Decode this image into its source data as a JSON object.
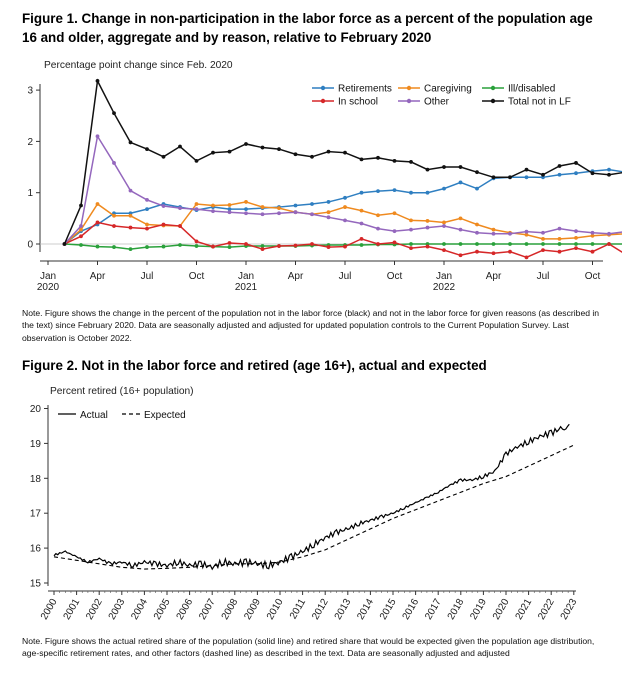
{
  "figure1": {
    "title": "Figure 1.  Change in non-participation in the labor force as a percent of the population age 16 and older, aggregate and by reason, relative to February 2020",
    "note": "Note. Figure shows the change in the percent of the population not in the labor force (black) and not in the labor force for given reasons (as described in the text) since February 2020.  Data are seasonally adjusted and adjusted for updated population controls to the Current Population Survey.  Last observation is October 2022."
  },
  "figure2": {
    "title": "Figure 2.  Not in the labor force and retired (age 16+), actual and expected",
    "note": "Note. Figure shows the actual retired share of the population (solid line) and retired share that would be expected given the population age distribution, age-specific retirement rates, and other factors (dashed line) as described in the text.  Data are seasonally adjusted and adjusted"
  },
  "chart_data": [
    {
      "type": "line",
      "title": "Figure 1.  Change in non-participation in the labor force as a percent of the population age 16 and older, aggregate and by reason, relative to February 2020",
      "ylabel": "Percentage point change since Feb. 2020",
      "ylim": [
        -0.3,
        3.1
      ],
      "yticks": [
        0,
        1,
        2,
        3
      ],
      "x_start": "2020-02",
      "x_end": "2022-10",
      "xticks": [
        {
          "month": "2020-01",
          "label": "Jan",
          "sub": "2020"
        },
        {
          "month": "2020-04",
          "label": "Apr",
          "sub": ""
        },
        {
          "month": "2020-07",
          "label": "Jul",
          "sub": ""
        },
        {
          "month": "2020-10",
          "label": "Oct",
          "sub": ""
        },
        {
          "month": "2021-01",
          "label": "Jan",
          "sub": "2021"
        },
        {
          "month": "2021-04",
          "label": "Apr",
          "sub": ""
        },
        {
          "month": "2021-07",
          "label": "Jul",
          "sub": ""
        },
        {
          "month": "2021-10",
          "label": "Oct",
          "sub": ""
        },
        {
          "month": "2022-01",
          "label": "Jan",
          "sub": "2022"
        },
        {
          "month": "2022-04",
          "label": "Apr",
          "sub": ""
        },
        {
          "month": "2022-07",
          "label": "Jul",
          "sub": ""
        },
        {
          "month": "2022-10",
          "label": "Oct",
          "sub": ""
        }
      ],
      "grid": false,
      "legend": "top-right",
      "series": [
        {
          "name": "Retirements",
          "color": "#2f7fc1",
          "values": [
            0,
            0.25,
            0.38,
            0.6,
            0.6,
            0.68,
            0.78,
            0.72,
            0.66,
            0.72,
            0.68,
            0.68,
            0.7,
            0.72,
            0.75,
            0.78,
            0.82,
            0.9,
            1.0,
            1.03,
            1.05,
            1.0,
            1.0,
            1.08,
            1.2,
            1.08,
            1.28,
            1.3,
            1.3,
            1.3,
            1.35,
            1.38,
            1.42,
            1.45,
            1.4,
            1.42
          ]
        },
        {
          "name": "Caregiving",
          "color": "#ef8a1f",
          "values": [
            0,
            0.28,
            0.78,
            0.55,
            0.55,
            0.38,
            0.36,
            0.35,
            0.78,
            0.75,
            0.76,
            0.82,
            0.72,
            0.7,
            0.62,
            0.58,
            0.62,
            0.72,
            0.65,
            0.56,
            0.6,
            0.46,
            0.45,
            0.42,
            0.5,
            0.38,
            0.28,
            0.22,
            0.18,
            0.1,
            0.1,
            0.12,
            0.16,
            0.18,
            0.2,
            0.2
          ]
        },
        {
          "name": "Ill/disabled",
          "color": "#2aa13b",
          "values": [
            0,
            -0.02,
            -0.05,
            -0.06,
            -0.1,
            -0.06,
            -0.05,
            -0.02,
            -0.04,
            -0.05,
            -0.06,
            -0.04,
            -0.04,
            -0.04,
            -0.04,
            -0.03,
            -0.02,
            -0.02,
            -0.02,
            -0.01,
            -0.01,
            0,
            0,
            0,
            0,
            0,
            0,
            0,
            0,
            0,
            0,
            0,
            0,
            0,
            0,
            0
          ]
        },
        {
          "name": "In school",
          "color": "#d62728",
          "values": [
            0,
            0.15,
            0.42,
            0.35,
            0.32,
            0.3,
            0.38,
            0.35,
            0.05,
            -0.05,
            0.02,
            0,
            -0.1,
            -0.04,
            -0.03,
            0,
            -0.06,
            -0.05,
            0.1,
            0,
            0.03,
            -0.08,
            -0.05,
            -0.12,
            -0.22,
            -0.15,
            -0.18,
            -0.15,
            -0.26,
            -0.12,
            -0.15,
            -0.08,
            -0.15,
            0,
            -0.2,
            -0.12
          ]
        },
        {
          "name": "Other",
          "color": "#9467bd",
          "values": [
            0,
            0.35,
            2.1,
            1.58,
            1.04,
            0.86,
            0.74,
            0.7,
            0.68,
            0.64,
            0.62,
            0.6,
            0.58,
            0.6,
            0.62,
            0.58,
            0.52,
            0.46,
            0.4,
            0.3,
            0.25,
            0.28,
            0.32,
            0.35,
            0.28,
            0.22,
            0.2,
            0.2,
            0.24,
            0.22,
            0.3,
            0.25,
            0.22,
            0.2,
            0.24,
            0.22
          ]
        },
        {
          "name": "Total not in LF",
          "color": "#111111",
          "values": [
            0,
            0.75,
            3.18,
            2.55,
            1.98,
            1.85,
            1.7,
            1.9,
            1.62,
            1.78,
            1.8,
            1.95,
            1.88,
            1.85,
            1.75,
            1.7,
            1.8,
            1.78,
            1.65,
            1.68,
            1.62,
            1.6,
            1.45,
            1.5,
            1.5,
            1.4,
            1.3,
            1.3,
            1.45,
            1.35,
            1.52,
            1.58,
            1.38,
            1.35,
            1.4,
            1.45
          ]
        }
      ]
    },
    {
      "type": "line",
      "title": "Figure 2.  Not in the labor force and retired (age 16+), actual and expected",
      "ylabel": "Percent retired (16+ population)",
      "ylim": [
        15,
        20
      ],
      "yticks": [
        15,
        16,
        17,
        18,
        19,
        20
      ],
      "xlim": [
        2000,
        2023
      ],
      "xticks": [
        2000,
        2001,
        2002,
        2003,
        2004,
        2005,
        2006,
        2007,
        2008,
        2009,
        2010,
        2011,
        2012,
        2013,
        2014,
        2015,
        2016,
        2017,
        2018,
        2019,
        2020,
        2021,
        2022,
        2023
      ],
      "grid": false,
      "legend": "top-left",
      "series": [
        {
          "name": "Actual",
          "style": "solid",
          "color": "#000000",
          "x": [
            2000,
            2000.5,
            2001,
            2001.5,
            2002,
            2002.5,
            2003,
            2003.5,
            2004,
            2004.5,
            2005,
            2005.5,
            2006,
            2006.5,
            2007,
            2007.5,
            2008,
            2008.5,
            2009,
            2009.5,
            2010,
            2010.5,
            2011,
            2011.5,
            2012,
            2012.5,
            2013,
            2013.5,
            2014,
            2014.5,
            2015,
            2015.5,
            2016,
            2016.5,
            2017,
            2017.5,
            2018,
            2018.5,
            2019,
            2019.5,
            2020,
            2020.5,
            2021,
            2021.5,
            2022,
            2022.5,
            2022.8
          ],
          "y": [
            15.8,
            15.9,
            15.75,
            15.6,
            15.7,
            15.55,
            15.6,
            15.5,
            15.6,
            15.55,
            15.5,
            15.6,
            15.5,
            15.55,
            15.45,
            15.6,
            15.55,
            15.6,
            15.55,
            15.5,
            15.6,
            15.75,
            15.9,
            16.1,
            16.3,
            16.45,
            16.55,
            16.7,
            16.8,
            16.9,
            17.0,
            17.15,
            17.3,
            17.45,
            17.6,
            17.8,
            17.95,
            17.95,
            18.05,
            18.2,
            18.7,
            18.9,
            19.05,
            19.2,
            19.3,
            19.45,
            19.55
          ]
        },
        {
          "name": "Expected",
          "style": "dashed",
          "color": "#000000",
          "x": [
            2000,
            2001,
            2002,
            2003,
            2004,
            2005,
            2006,
            2007,
            2008,
            2009,
            2010,
            2011,
            2012,
            2013,
            2014,
            2015,
            2016,
            2017,
            2018,
            2019,
            2020,
            2021,
            2022,
            2023
          ],
          "y": [
            15.75,
            15.65,
            15.55,
            15.45,
            15.4,
            15.42,
            15.45,
            15.5,
            15.55,
            15.55,
            15.6,
            15.75,
            15.95,
            16.25,
            16.55,
            16.85,
            17.1,
            17.35,
            17.6,
            17.85,
            18.05,
            18.35,
            18.65,
            18.95
          ]
        }
      ]
    }
  ]
}
